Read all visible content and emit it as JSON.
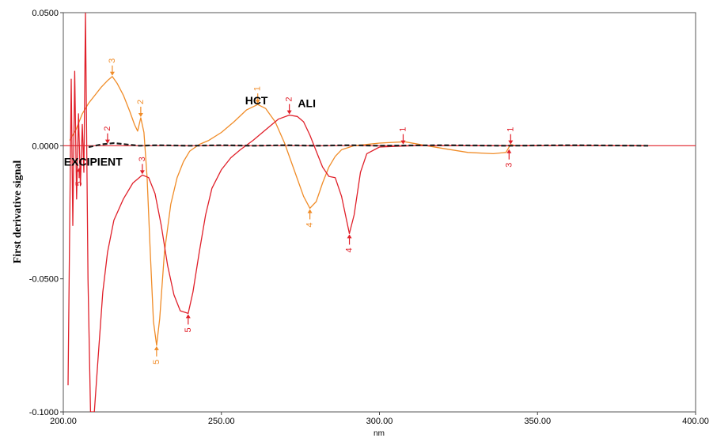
{
  "chart_data": {
    "type": "line",
    "title": "",
    "xlabel": "nm",
    "ylabel": "First derivative signal",
    "xlim": [
      200,
      400
    ],
    "ylim": [
      -0.1,
      0.05
    ],
    "x_ticks": [
      "200.00",
      "250.00",
      "300.00",
      "350.00",
      "400.00"
    ],
    "y_ticks": [
      "0.0500",
      "0.0000",
      "-0.0500",
      "-0.1000"
    ],
    "grid": false,
    "legend": "none",
    "colors": {
      "HCT": "#f08c28",
      "ALI": "#e0202a",
      "EXCIPIENT": "#202020",
      "zero_line": "#e0202a"
    },
    "annotations": [
      {
        "text": "HCT",
        "x": 257.5,
        "y": 0.0155
      },
      {
        "text": "ALI",
        "x": 274.2,
        "y": 0.0145
      },
      {
        "text": "EXCIPIENT",
        "x": 200.2,
        "y": -0.0075
      }
    ],
    "series": [
      {
        "name": "HCT",
        "points": [
          [
            202.0,
            0.002
          ],
          [
            204.0,
            0.006
          ],
          [
            206.0,
            0.012
          ],
          [
            208.0,
            0.016
          ],
          [
            210.0,
            0.019
          ],
          [
            212.0,
            0.022
          ],
          [
            214.0,
            0.0245
          ],
          [
            215.5,
            0.026
          ],
          [
            217.0,
            0.0235
          ],
          [
            219.0,
            0.019
          ],
          [
            221.0,
            0.013
          ],
          [
            222.5,
            0.008
          ],
          [
            223.5,
            0.0055
          ],
          [
            224.5,
            0.0105
          ],
          [
            225.5,
            0.005
          ],
          [
            226.5,
            -0.012
          ],
          [
            227.5,
            -0.04
          ],
          [
            228.5,
            -0.066
          ],
          [
            229.5,
            -0.075
          ],
          [
            230.5,
            -0.065
          ],
          [
            232.0,
            -0.04
          ],
          [
            234.0,
            -0.022
          ],
          [
            236.0,
            -0.012
          ],
          [
            238.0,
            -0.006
          ],
          [
            240.0,
            -0.002
          ],
          [
            243.0,
            0.0005
          ],
          [
            246.0,
            0.002
          ],
          [
            250.0,
            0.005
          ],
          [
            254.0,
            0.009
          ],
          [
            258.0,
            0.0135
          ],
          [
            261.5,
            0.0155
          ],
          [
            264.0,
            0.014
          ],
          [
            267.0,
            0.009
          ],
          [
            270.0,
            0.001
          ],
          [
            273.0,
            -0.009
          ],
          [
            276.0,
            -0.019
          ],
          [
            278.0,
            -0.0235
          ],
          [
            280.0,
            -0.021
          ],
          [
            282.0,
            -0.014
          ],
          [
            284.0,
            -0.008
          ],
          [
            286.0,
            -0.004
          ],
          [
            288.0,
            -0.0015
          ],
          [
            292.0,
            0.0
          ],
          [
            300.0,
            0.001
          ],
          [
            308.0,
            0.0015
          ],
          [
            315.0,
            0.0
          ],
          [
            320.0,
            -0.001
          ],
          [
            328.0,
            -0.0025
          ],
          [
            336.0,
            -0.003
          ],
          [
            340.0,
            -0.0025
          ],
          [
            341.5,
            0.0005
          ],
          [
            343.0,
            0.0
          ],
          [
            360.0,
            0.0
          ],
          [
            385.0,
            0.0
          ]
        ],
        "peaks": [
          {
            "label": "3",
            "x": 215.5,
            "y": 0.026,
            "dir": "down"
          },
          {
            "label": "2",
            "x": 224.5,
            "y": 0.0105,
            "dir": "down"
          },
          {
            "label": "1",
            "x": 261.5,
            "y": 0.0155,
            "dir": "down"
          },
          {
            "label": "5",
            "x": 229.5,
            "y": -0.075,
            "dir": "up"
          },
          {
            "label": "4",
            "x": 278.0,
            "y": -0.0235,
            "dir": "up"
          }
        ]
      },
      {
        "name": "ALI",
        "points": [
          [
            201.5,
            -0.09
          ],
          [
            202.5,
            0.025
          ],
          [
            203.0,
            -0.03
          ],
          [
            203.6,
            0.028
          ],
          [
            204.2,
            -0.02
          ],
          [
            204.8,
            0.012
          ],
          [
            205.4,
            -0.015
          ],
          [
            206.0,
            0.008
          ],
          [
            206.5,
            -0.01
          ],
          [
            207.0,
            0.05
          ],
          [
            207.8,
            -0.05
          ],
          [
            208.6,
            -0.1
          ],
          [
            209.8,
            -0.1
          ],
          [
            211.0,
            -0.08
          ],
          [
            212.5,
            -0.055
          ],
          [
            214.0,
            -0.04
          ],
          [
            216.0,
            -0.028
          ],
          [
            219.0,
            -0.02
          ],
          [
            222.0,
            -0.014
          ],
          [
            225.0,
            -0.011
          ],
          [
            227.0,
            -0.012
          ],
          [
            229.0,
            -0.018
          ],
          [
            231.0,
            -0.03
          ],
          [
            233.0,
            -0.045
          ],
          [
            235.0,
            -0.056
          ],
          [
            237.0,
            -0.062
          ],
          [
            239.5,
            -0.063
          ],
          [
            241.0,
            -0.055
          ],
          [
            243.0,
            -0.04
          ],
          [
            245.0,
            -0.026
          ],
          [
            247.0,
            -0.016
          ],
          [
            250.0,
            -0.009
          ],
          [
            253.0,
            -0.0045
          ],
          [
            256.0,
            -0.0015
          ],
          [
            260.0,
            0.002
          ],
          [
            264.0,
            0.006
          ],
          [
            268.0,
            0.01
          ],
          [
            271.5,
            0.0115
          ],
          [
            274.0,
            0.011
          ],
          [
            276.0,
            0.009
          ],
          [
            278.0,
            0.004
          ],
          [
            280.0,
            -0.002
          ],
          [
            282.0,
            -0.008
          ],
          [
            284.0,
            -0.0115
          ],
          [
            286.0,
            -0.012
          ],
          [
            288.0,
            -0.019
          ],
          [
            290.5,
            -0.033
          ],
          [
            292.0,
            -0.026
          ],
          [
            294.0,
            -0.01
          ],
          [
            296.0,
            -0.003
          ],
          [
            300.0,
            -0.0005
          ],
          [
            310.0,
            0.0
          ],
          [
            350.0,
            0.0
          ],
          [
            385.0,
            0.0
          ]
        ],
        "peaks": [
          {
            "label": "2",
            "x": 271.5,
            "y": 0.0115,
            "dir": "down"
          },
          {
            "label": "3",
            "x": 225.0,
            "y": -0.011,
            "dir": "down"
          },
          {
            "label": "5",
            "x": 239.5,
            "y": -0.063,
            "dir": "up"
          },
          {
            "label": "4",
            "x": 290.5,
            "y": -0.033,
            "dir": "up"
          }
        ]
      },
      {
        "name": "EXCIPIENT",
        "points": [
          [
            208.0,
            -0.0005
          ],
          [
            212.0,
            0.0005
          ],
          [
            216.0,
            0.001
          ],
          [
            220.0,
            0.0005
          ],
          [
            224.0,
            0.0
          ],
          [
            230.0,
            0.0002
          ],
          [
            240.0,
            0.0
          ],
          [
            250.0,
            0.0002
          ],
          [
            260.0,
            0.0
          ],
          [
            270.0,
            0.0002
          ],
          [
            280.0,
            0.0
          ],
          [
            290.0,
            0.0002
          ],
          [
            300.0,
            0.0
          ],
          [
            320.0,
            0.0002
          ],
          [
            340.0,
            0.0
          ],
          [
            360.0,
            0.0002
          ],
          [
            385.0,
            0.0
          ]
        ],
        "peaks": [
          {
            "label": "2",
            "x": 214.0,
            "y": 0.0005,
            "dir": "down"
          },
          {
            "label": "1",
            "x": 307.5,
            "y": 0.0002,
            "dir": "down"
          },
          {
            "label": "1",
            "x": 341.5,
            "y": 0.0002,
            "dir": "down"
          },
          {
            "label": "3",
            "x": 341.0,
            "y": -0.001,
            "dir": "up"
          },
          {
            "label": "5",
            "x": 205.0,
            "y": -0.008,
            "dir": "up"
          }
        ]
      }
    ]
  }
}
